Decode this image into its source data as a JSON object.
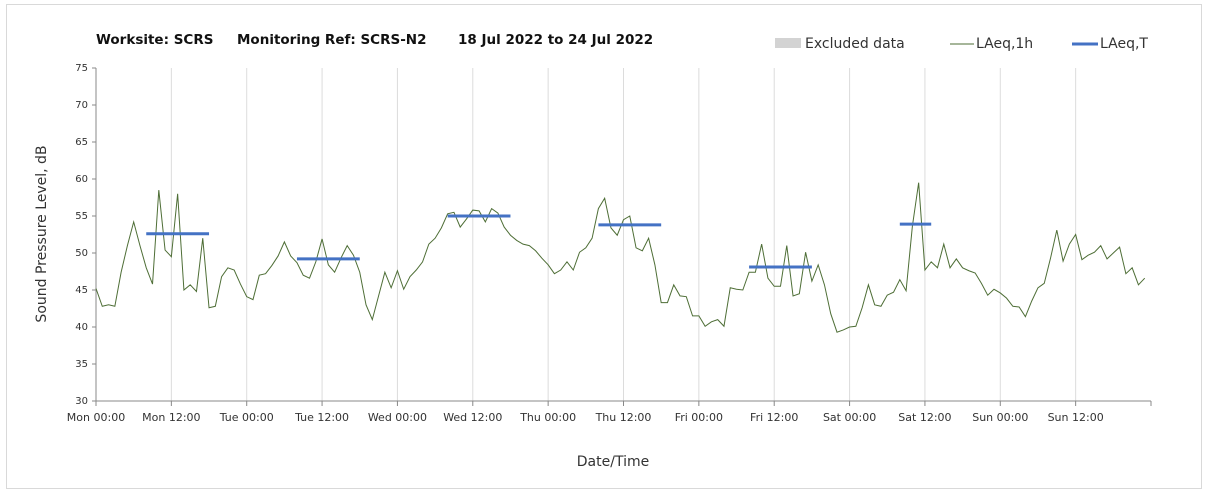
{
  "chart_data": {
    "type": "line",
    "title_parts": [
      "Worksite: SCRS",
      "Monitoring Ref: SCRS-N2",
      "18 Jul 2022 to 24 Jul 2022"
    ],
    "x_label": "Date/Time",
    "y_label": "Sound Pressure Level, dB",
    "xlim": [
      0,
      168
    ],
    "xticks": [
      {
        "value": 0,
        "label": "Mon 00:00"
      },
      {
        "value": 12,
        "label": "Mon 12:00"
      },
      {
        "value": 24,
        "label": "Tue 00:00"
      },
      {
        "value": 36,
        "label": "Tue 12:00"
      },
      {
        "value": 48,
        "label": "Wed 00:00"
      },
      {
        "value": 60,
        "label": "Wed 12:00"
      },
      {
        "value": 72,
        "label": "Thu 00:00"
      },
      {
        "value": 84,
        "label": "Thu 12:00"
      },
      {
        "value": 96,
        "label": "Fri 00:00"
      },
      {
        "value": 108,
        "label": "Fri 12:00"
      },
      {
        "value": 120,
        "label": "Sat 00:00"
      },
      {
        "value": 132,
        "label": "Sat 12:00"
      },
      {
        "value": 144,
        "label": "Sun 00:00"
      },
      {
        "value": 156,
        "label": "Sun 12:00"
      }
    ],
    "ylim": [
      30,
      75
    ],
    "yticks": [
      30,
      35,
      40,
      45,
      50,
      55,
      60,
      65,
      70,
      75
    ],
    "grid": "x",
    "excluded": {
      "name": "Excluded data",
      "color": "#d3d3d3"
    },
    "series": [
      {
        "name": "LAeq,1h",
        "color": "#4e6e36",
        "x": [
          0,
          1,
          2,
          3,
          4,
          5,
          6,
          7,
          8,
          9,
          10,
          11,
          12,
          13,
          14,
          15,
          16,
          17,
          18,
          19,
          20,
          21,
          22,
          23,
          24,
          25,
          26,
          27,
          28,
          29,
          30,
          31,
          32,
          33,
          34,
          35,
          36,
          37,
          38,
          39,
          40,
          41,
          42,
          43,
          44,
          45,
          46,
          47,
          48,
          49,
          50,
          51,
          52,
          53,
          54,
          55,
          56,
          57,
          58,
          59,
          60,
          61,
          62,
          63,
          64,
          65,
          66,
          67,
          68,
          69,
          70,
          71,
          72,
          73,
          74,
          75,
          76,
          77,
          78,
          79,
          80,
          81,
          82,
          83,
          84,
          85,
          86,
          87,
          88,
          89,
          90,
          91,
          92,
          93,
          94,
          95,
          96,
          97,
          98,
          99,
          100,
          101,
          102,
          103,
          104,
          105,
          106,
          107,
          108,
          109,
          110,
          111,
          112,
          113,
          114,
          115,
          116,
          117,
          118,
          119,
          120,
          121,
          122,
          123,
          124,
          125,
          126,
          127,
          128,
          129,
          130,
          131,
          132,
          133,
          134,
          135,
          136,
          137,
          138,
          139,
          140,
          141,
          142,
          143,
          144,
          145,
          146,
          147,
          148,
          149,
          150,
          151,
          152,
          153,
          154,
          155,
          156,
          157,
          158,
          159,
          160,
          161,
          162,
          163,
          164,
          165,
          166,
          167
        ],
        "values": [
          45.2,
          42.8,
          43,
          42.8,
          47.4,
          51,
          54.2,
          51,
          48,
          45.8,
          58.5,
          50.4,
          49.5,
          58,
          45,
          45.7,
          44.8,
          52,
          42.6,
          42.8,
          46.8,
          48,
          47.7,
          45.8,
          44.1,
          43.7,
          47,
          47.2,
          48.3,
          49.6,
          51.5,
          49.6,
          48.7,
          47,
          46.6,
          48.8,
          51.9,
          48.4,
          47.4,
          49.3,
          51,
          49.7,
          47.4,
          43,
          41,
          44.2,
          47.4,
          45.3,
          47.6,
          45.1,
          46.8,
          47.7,
          48.8,
          51.2,
          52,
          53.4,
          55.3,
          55.5,
          53.5,
          54.6,
          55.8,
          55.7,
          54.2,
          56,
          55.4,
          53.5,
          52.4,
          51.7,
          51.2,
          51,
          50.3,
          49.3,
          48.4,
          47.2,
          47.7,
          48.8,
          47.7,
          50.1,
          50.7,
          52,
          56,
          57.4,
          53.4,
          52.4,
          54.5,
          55,
          50.7,
          50.3,
          52,
          48.4,
          43.3,
          43.3,
          45.7,
          44.2,
          44.1,
          41.5,
          41.5,
          40.1,
          40.7,
          41,
          40.1,
          45.3,
          45.1,
          45,
          47.4,
          47.4,
          51.2,
          46.6,
          45.5,
          45.5,
          51,
          44.2,
          44.5,
          50.1,
          46.2,
          48.4,
          45.7,
          41.8,
          39.3,
          39.6,
          40,
          40.1,
          42.6,
          45.7,
          43,
          42.8,
          44.3,
          44.7,
          46.4,
          44.9,
          53.6,
          59.5,
          47.7,
          48.8,
          48,
          51.2,
          48,
          49.2,
          48,
          47.6,
          47.3,
          45.9,
          44.3,
          45.1,
          44.6,
          43.9,
          42.8,
          42.7,
          41.4,
          43.5,
          45.3,
          45.9,
          49.3,
          53.1,
          48.9,
          51.2,
          52.5,
          49.1,
          49.7,
          50.1,
          51,
          49.2,
          50,
          50.8,
          47.2,
          48,
          45.7,
          46.6
        ]
      },
      {
        "name": "LAeq,T",
        "color": "#4472c4",
        "x_start": [
          8,
          32,
          56,
          80,
          104,
          128
        ],
        "x_end": [
          18,
          42,
          66,
          90,
          114,
          133
        ],
        "values": [
          52.6,
          49.2,
          55,
          53.8,
          48.1,
          53.9
        ]
      }
    ]
  }
}
